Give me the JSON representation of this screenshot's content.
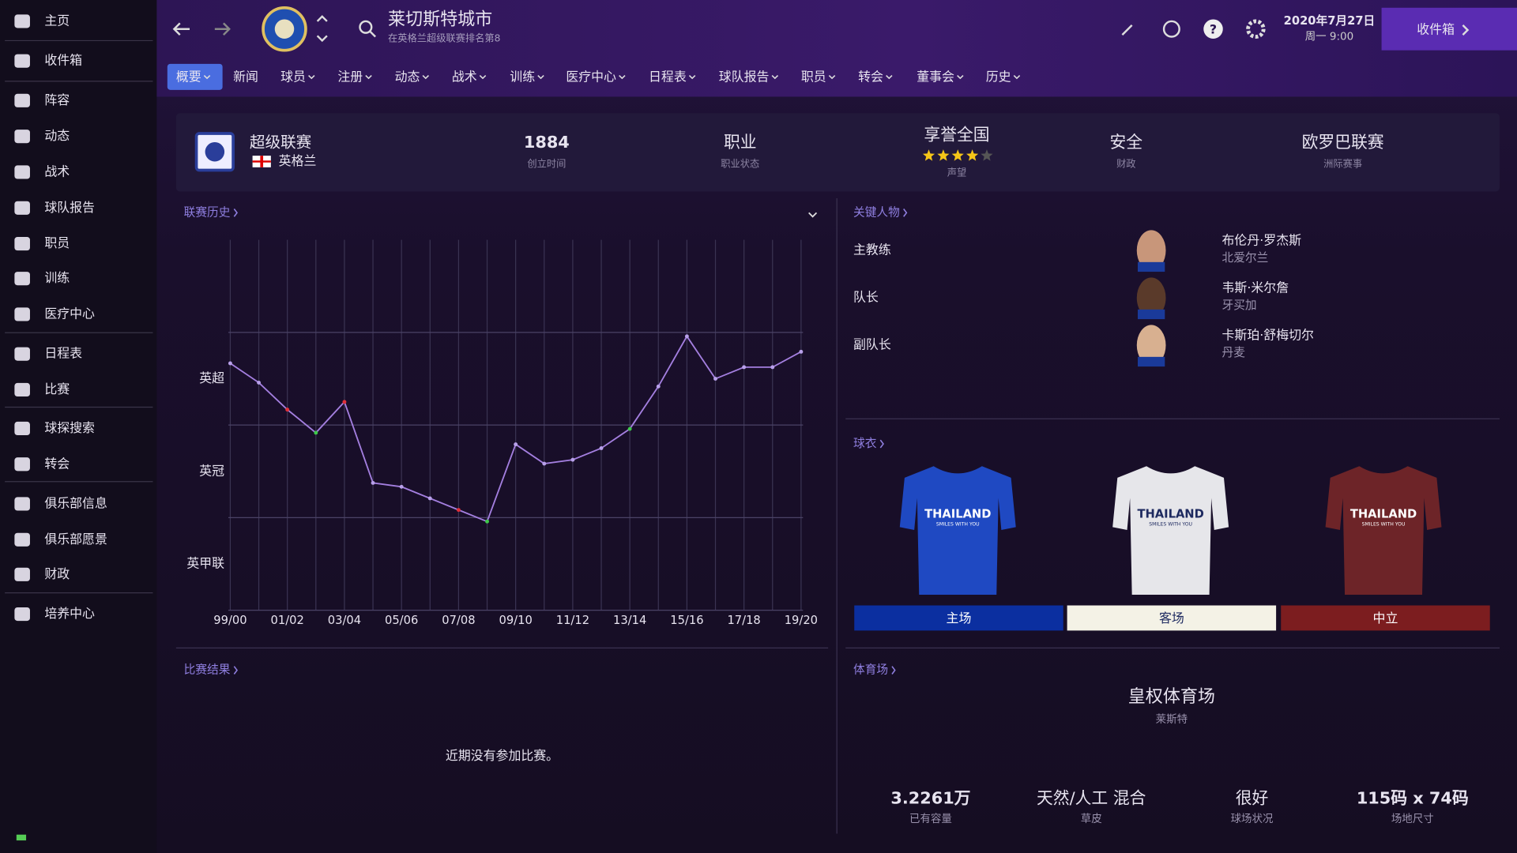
{
  "sidebar": [
    "主页",
    "收件箱",
    "阵容",
    "动态",
    "战术",
    "球队报告",
    "职员",
    "训练",
    "医疗中心",
    "日程表",
    "比赛",
    "球探搜索",
    "转会",
    "俱乐部信息",
    "俱乐部愿景",
    "财政",
    "培养中心"
  ],
  "header": {
    "club": "莱切斯特城市",
    "subtitle": "在英格兰超级联赛排名第8",
    "date": "2020年7月27日",
    "time": "周一 9:00",
    "inbox": "收件箱"
  },
  "tabs": [
    "概要",
    "新闻",
    "球员",
    "注册",
    "动态",
    "战术",
    "训练",
    "医疗中心",
    "日程表",
    "球队报告",
    "职员",
    "转会",
    "董事会",
    "历史"
  ],
  "club_info": {
    "league": "超级联赛",
    "nation": "英格兰",
    "stars": 4,
    "stars_max": 5,
    "stats": [
      {
        "value": "1884",
        "label": "创立时间"
      },
      {
        "value": "职业",
        "label": "职业状态"
      },
      {
        "value": "享誉全国",
        "label": "声望"
      },
      {
        "value": "安全",
        "label": "财政"
      },
      {
        "value": "欧罗巴联赛",
        "label": "洲际赛事"
      }
    ]
  },
  "chart_data": {
    "type": "line",
    "title": "联赛历史",
    "categories": [
      "99/00",
      null,
      "01/02",
      null,
      "03/04",
      null,
      "05/06",
      null,
      "07/08",
      null,
      "09/10",
      null,
      "11/12",
      null,
      "13/14",
      null,
      "15/16",
      null,
      "17/18",
      null,
      "19/20"
    ],
    "series": [
      {
        "color": "#a47fe0",
        "values": [
          8,
          13,
          20,
          26,
          18,
          39,
          40,
          43,
          46,
          49,
          29,
          34,
          33,
          30,
          25,
          14,
          1,
          12,
          9,
          9,
          5
        ],
        "point_colors": [
          "#b8a0ea",
          "#b8a0ea",
          "#e0303a",
          "#3ec94a",
          "#e0303a",
          "#b8a0ea",
          "#b8a0ea",
          "#b8a0ea",
          "#e0303a",
          "#3ec94a",
          "#b8a0ea",
          "#b8a0ea",
          "#b8a0ea",
          "#b8a0ea",
          "#3ec94a",
          "#b8a0ea",
          "#b8a0ea",
          "#b8a0ea",
          "#b8a0ea",
          "#b8a0ea",
          "#b8a0ea"
        ]
      }
    ],
    "ylim": [
      -24,
      72
    ],
    "y_inverted": true,
    "yticks": [
      {
        "value": 12,
        "label": "英超"
      },
      {
        "value": 36,
        "label": "英冠"
      },
      {
        "value": 60,
        "label": "英甲联"
      }
    ],
    "ygrid": [
      0,
      24,
      48,
      72
    ],
    "grid": true
  },
  "key_people": {
    "title": "关键人物",
    "rows": [
      {
        "role": "主教练",
        "name": "布伦丹·罗杰斯",
        "nation": "北爱尔兰"
      },
      {
        "role": "队长",
        "name": "韦斯·米尔詹",
        "nation": "牙买加"
      },
      {
        "role": "副队长",
        "name": "卡斯珀·舒梅切尔",
        "nation": "丹麦"
      }
    ]
  },
  "kits": {
    "title": "球衣",
    "sponsor": "THAILAND",
    "slogan": "SMILES WITH YOU",
    "items": [
      {
        "label": "主场",
        "bar": "#0b2fa0",
        "shirt": "#1f49c2",
        "text": "#ffffff"
      },
      {
        "label": "客场",
        "bar": "#f4f2e6",
        "shirt": "#e6e6ea",
        "text": "#1e2a60"
      },
      {
        "label": "中立",
        "bar": "#7c1d1f",
        "shirt": "#6d2428",
        "text": "#ffffff"
      }
    ]
  },
  "results": {
    "title": "比赛结果",
    "empty": "近期没有参加比赛。"
  },
  "stadium": {
    "title": "体育场",
    "name": "皇权体育场",
    "city": "莱斯特",
    "stats": [
      {
        "value": "3.2261万",
        "label": "已有容量"
      },
      {
        "value": "天然/人工 混合",
        "label": "草皮"
      },
      {
        "value": "很好",
        "label": "球场状况"
      },
      {
        "value": "115码 x 74码",
        "label": "场地尺寸"
      }
    ]
  }
}
